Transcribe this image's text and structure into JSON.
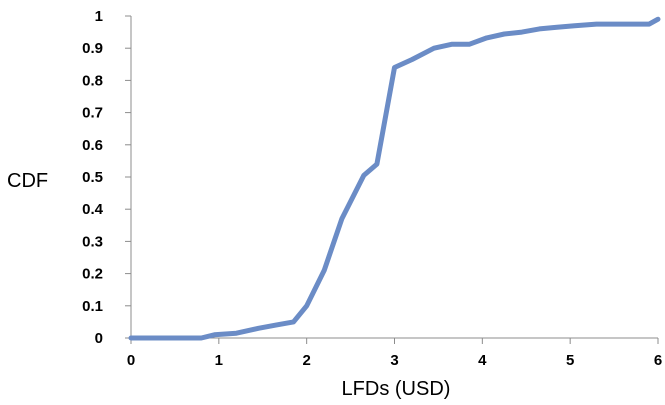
{
  "chart_data": {
    "type": "line",
    "title": "",
    "xlabel": "LFDs (USD)",
    "ylabel": "CDF",
    "xlim": [
      0,
      6
    ],
    "ylim": [
      0,
      1
    ],
    "grid": false,
    "legend": "none",
    "x_ticks": [
      "0",
      "1",
      "2",
      "3",
      "4",
      "5",
      "6"
    ],
    "y_ticks": [
      "0",
      "0.1",
      "0.2",
      "0.3",
      "0.4",
      "0.5",
      "0.6",
      "0.7",
      "0.8",
      "0.9",
      "1"
    ],
    "series": [
      {
        "color": "#6b8cc6",
        "x": [
          0,
          0.8,
          0.95,
          1.2,
          1.45,
          1.65,
          1.85,
          2.0,
          2.2,
          2.4,
          2.65,
          2.8,
          3.0,
          3.2,
          3.45,
          3.65,
          3.85,
          4.05,
          4.25,
          4.45,
          4.65,
          4.85,
          5.05,
          5.3,
          5.55,
          5.8,
          5.9,
          6.0
        ],
        "y": [
          0,
          0,
          0.01,
          0.015,
          0.03,
          0.04,
          0.05,
          0.1,
          0.21,
          0.37,
          0.505,
          0.54,
          0.84,
          0.865,
          0.9,
          0.912,
          0.912,
          0.932,
          0.944,
          0.95,
          0.96,
          0.965,
          0.97,
          0.975,
          0.975,
          0.975,
          0.975,
          0.99
        ]
      }
    ]
  }
}
